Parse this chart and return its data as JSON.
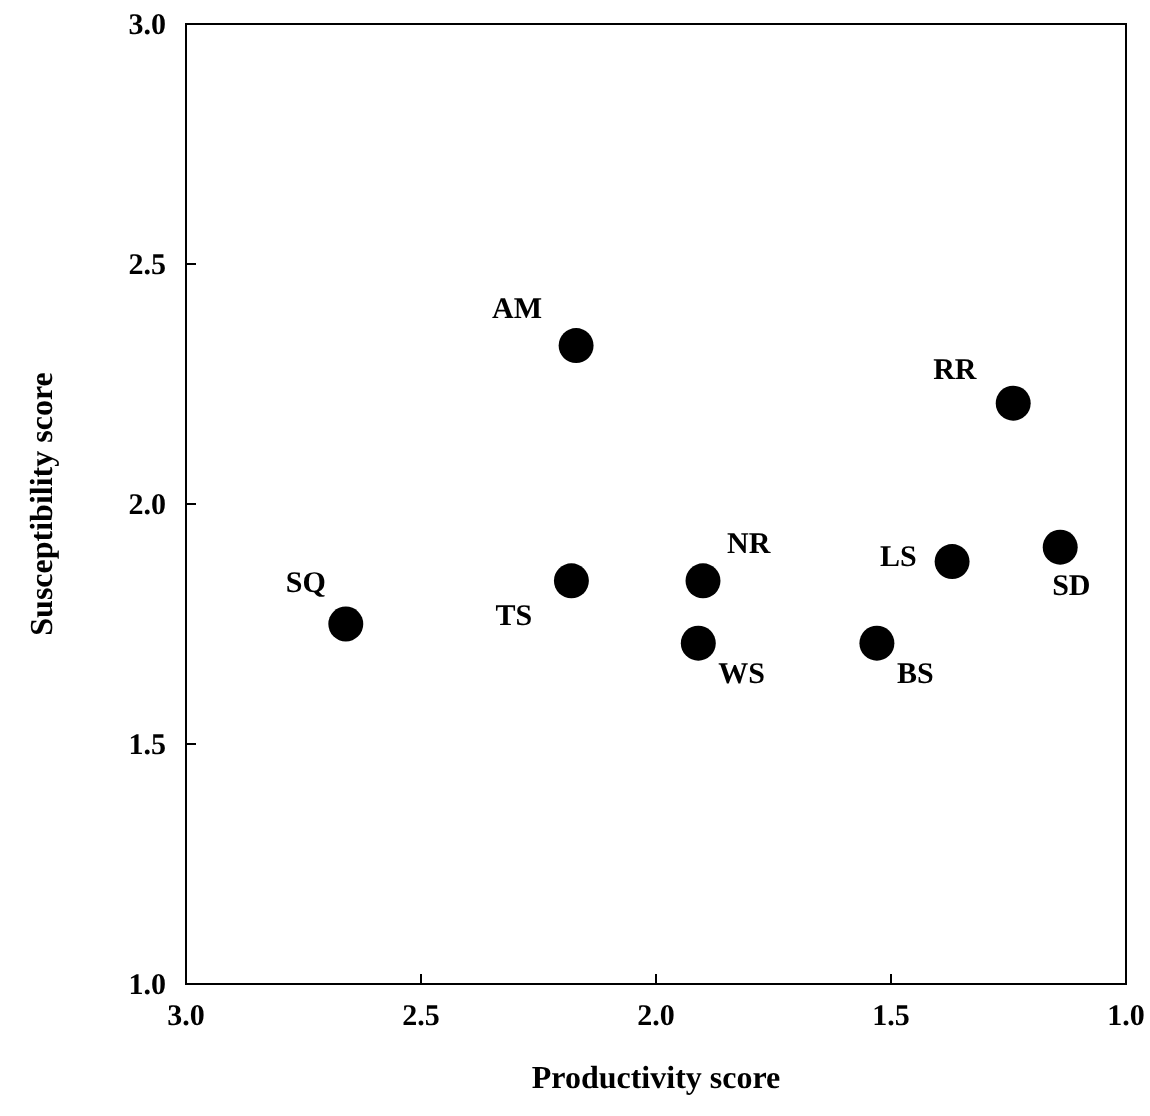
{
  "chart_data": {
    "type": "scatter",
    "xlabel": "Productivity score",
    "ylabel": "Susceptibility score",
    "x": [
      2.66,
      2.17,
      2.18,
      1.9,
      1.91,
      1.53,
      1.24,
      1.37,
      1.14
    ],
    "values": [
      1.75,
      2.33,
      1.84,
      1.84,
      1.71,
      1.71,
      2.21,
      1.88,
      1.91
    ],
    "color": "#000000",
    "marker": "circle",
    "xlim": [
      3.0,
      1.0
    ],
    "xticks": [
      {
        "value": 3.0,
        "label": "3.0"
      },
      2.5,
      {
        "value": 2.0,
        "label": "2.0"
      },
      1.5,
      {
        "value": 1.0,
        "label": "1.0"
      }
    ],
    "ylim": [
      1.0,
      3.0
    ],
    "yticks": [
      {
        "value": 1.0,
        "label": "1.0"
      },
      1.5,
      {
        "value": 2.0,
        "label": "2.0"
      },
      2.5,
      {
        "value": 3.0,
        "label": "3.0"
      }
    ],
    "grid": false,
    "annotations": [
      {
        "text": "SQ",
        "x": 2.66,
        "y": 1.75
      },
      {
        "text": "AM",
        "x": 2.17,
        "y": 2.33
      },
      {
        "text": "TS",
        "x": 2.18,
        "y": 1.84
      },
      {
        "text": "NR",
        "x": 1.9,
        "y": 1.84
      },
      {
        "text": "WS",
        "x": 1.91,
        "y": 1.71
      },
      {
        "text": "BS",
        "x": 1.53,
        "y": 1.71
      },
      {
        "text": "RR",
        "x": 1.24,
        "y": 2.21
      },
      {
        "text": "LS",
        "x": 1.37,
        "y": 1.88
      },
      {
        "text": "SD",
        "x": 1.14,
        "y": 1.91
      }
    ]
  }
}
